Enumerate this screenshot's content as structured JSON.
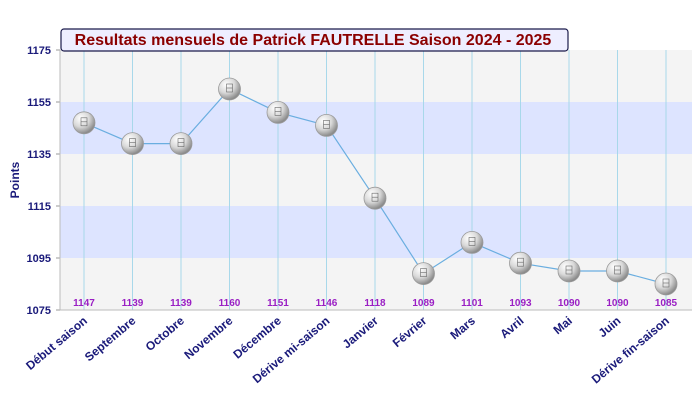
{
  "colors": {
    "title_text": "#8b0000",
    "title_bg": "#eeeeff",
    "title_border": "#1a1a4a",
    "axis_text": "#1a1a7a",
    "data_label": "#9a1fc4",
    "band_blue": "#dde4ff",
    "band_grey": "#f4f4f4",
    "vgrid": "#a8d8ea",
    "line": "#6aaee0",
    "marker": "#d8d8d8"
  },
  "chart_data": {
    "type": "line",
    "title": "Resultats mensuels de Patrick FAUTRELLE Saison 2024 - 2025",
    "xlabel": "",
    "ylabel": "Points",
    "ylim": [
      1075,
      1175
    ],
    "yticks": [
      1175,
      1155,
      1135,
      1115,
      1095,
      1075
    ],
    "categories": [
      "Début saison",
      "Septembre",
      "Octobre",
      "Novembre",
      "Décembre",
      "Dérive mi-saison",
      "Janvier",
      "Février",
      "Mars",
      "Avril",
      "Mai",
      "Juin",
      "Dérive fin-saison"
    ],
    "values": [
      1147,
      1139,
      1139,
      1160,
      1151,
      1146,
      1118,
      1089,
      1101,
      1093,
      1090,
      1090,
      1085
    ],
    "data_labels": [
      "1147",
      "1139",
      "1139",
      "1160",
      "1151",
      "1146",
      "1118",
      "1089",
      "1101",
      "1093",
      "1090",
      "1090",
      "1085"
    ],
    "grid": true,
    "legend": "none"
  }
}
